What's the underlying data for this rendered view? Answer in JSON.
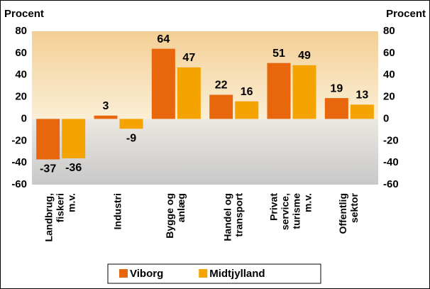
{
  "chart_data": {
    "type": "bar",
    "y_label": "Procent",
    "y2_label": "Procent",
    "categories": [
      [
        "Landbrug,",
        "fiskeri",
        "m.v."
      ],
      [
        "Industri"
      ],
      [
        "Bygge og",
        "anlæg"
      ],
      [
        "Handel og",
        "transport"
      ],
      [
        "Privat",
        "service,",
        "turisme",
        "m.v."
      ],
      [
        "Offentlig",
        "sektor"
      ]
    ],
    "series": [
      {
        "name": "Viborg",
        "color": "#e8660c",
        "values": [
          -37,
          3,
          64,
          22,
          51,
          19
        ]
      },
      {
        "name": "Midtjylland",
        "color": "#f5a300",
        "values": [
          -36,
          -9,
          47,
          16,
          49,
          13
        ]
      }
    ],
    "ylim": [
      -60,
      80
    ],
    "yticks": [
      -60,
      -40,
      -20,
      0,
      20,
      40,
      60,
      80
    ],
    "y2lim": [
      -60,
      80
    ],
    "y2ticks": [
      -60,
      -40,
      -20,
      0,
      20,
      40,
      60,
      80
    ],
    "legend": "bottom"
  }
}
